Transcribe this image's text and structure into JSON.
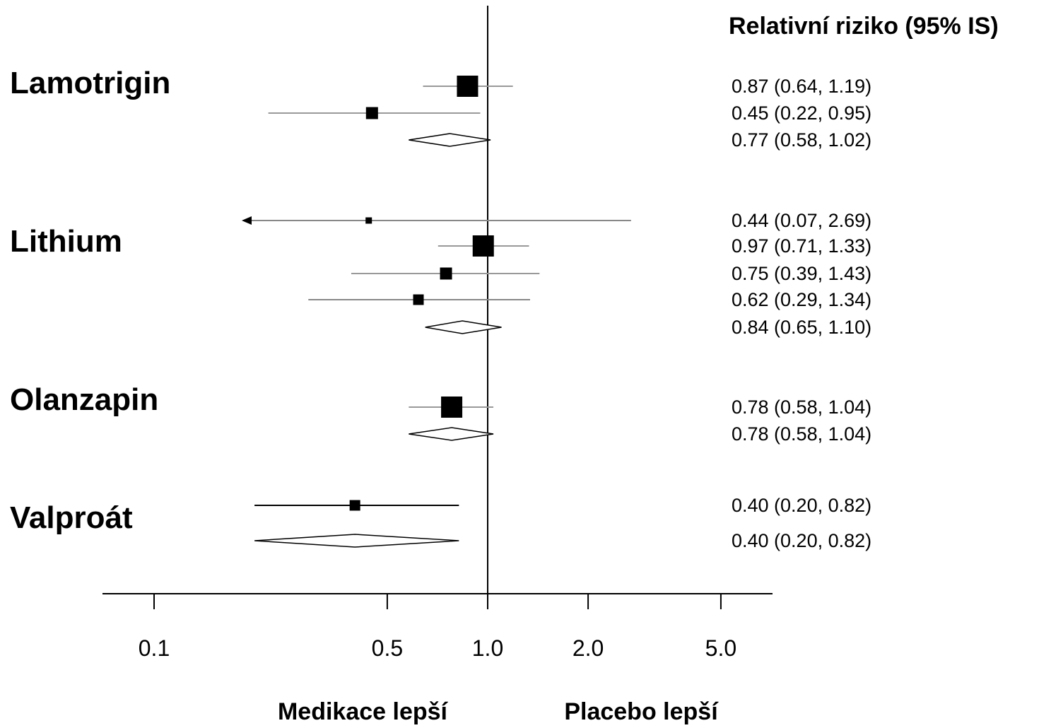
{
  "chart_data": {
    "type": "forest",
    "x_scale": "log",
    "header": "Relativní riziko (95% IS)",
    "ticks": [
      {
        "value": 0.1,
        "label": "0.1"
      },
      {
        "value": 0.5,
        "label": "0.5"
      },
      {
        "value": 1.0,
        "label": "1.0"
      },
      {
        "value": 2.0,
        "label": "2.0"
      },
      {
        "value": 5.0,
        "label": "5.0"
      }
    ],
    "reference_line": 1.0,
    "left_label": "Medikace lepší",
    "right_label": "Placebo lepší",
    "groups": [
      {
        "name": "Lamotrigin",
        "studies": [
          {
            "rr": 0.87,
            "lo": 0.64,
            "hi": 1.19,
            "text": "0.87 (0.64, 1.19)",
            "weight": "large",
            "line_color": "#999999"
          },
          {
            "rr": 0.45,
            "lo": 0.22,
            "hi": 0.95,
            "text": "0.45 (0.22, 0.95)",
            "weight": "medium",
            "line_color": "#999999"
          }
        ],
        "pooled": {
          "rr": 0.77,
          "lo": 0.58,
          "hi": 1.02,
          "text": "0.77 (0.58, 1.02)"
        }
      },
      {
        "name": "Lithium",
        "studies": [
          {
            "rr": 0.44,
            "lo": 0.07,
            "hi": 2.69,
            "text": "0.44 (0.07, 2.69)",
            "weight": "small",
            "line_color": "#888888",
            "clipped_left": true
          },
          {
            "rr": 0.97,
            "lo": 0.71,
            "hi": 1.33,
            "text": "0.97 (0.71, 1.33)",
            "weight": "large",
            "line_color": "#999999"
          },
          {
            "rr": 0.75,
            "lo": 0.39,
            "hi": 1.43,
            "text": "0.75 (0.39, 1.43)",
            "weight": "medium",
            "line_color": "#999999"
          },
          {
            "rr": 0.62,
            "lo": 0.29,
            "hi": 1.34,
            "text": "0.62 (0.29, 1.34)",
            "weight": "medium-small",
            "line_color": "#888888"
          }
        ],
        "pooled": {
          "rr": 0.84,
          "lo": 0.65,
          "hi": 1.1,
          "text": "0.84 (0.65, 1.10)"
        }
      },
      {
        "name": "Olanzapin",
        "studies": [
          {
            "rr": 0.78,
            "lo": 0.58,
            "hi": 1.04,
            "text": "0.78 (0.58, 1.04)",
            "weight": "large",
            "line_color": "#999999"
          }
        ],
        "pooled": {
          "rr": 0.78,
          "lo": 0.58,
          "hi": 1.04,
          "text": "0.78 (0.58, 1.04)"
        }
      },
      {
        "name": "Valproát",
        "studies": [
          {
            "rr": 0.4,
            "lo": 0.2,
            "hi": 0.82,
            "text": "0.40 (0.20, 0.82)",
            "weight": "medium-small",
            "line_color": "#000000"
          }
        ],
        "pooled": {
          "rr": 0.4,
          "lo": 0.2,
          "hi": 0.82,
          "text": "0.40 (0.20, 0.82)"
        }
      }
    ]
  }
}
